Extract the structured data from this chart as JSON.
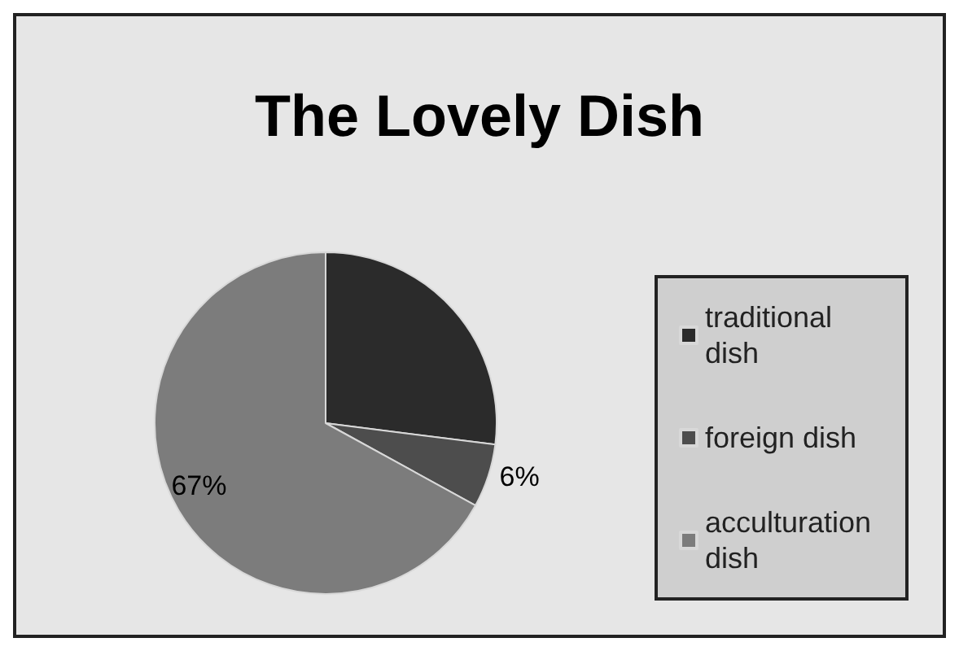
{
  "chart_data": {
    "type": "pie",
    "title": "The Lovely Dish",
    "categories": [
      "traditional dish",
      "foreign dish",
      "acculturation dish"
    ],
    "values": [
      27,
      6,
      67
    ],
    "colors": [
      "#2b2b2b",
      "#4d4d4d",
      "#7c7c7c"
    ],
    "value_labels": [
      null,
      "6%",
      "67%"
    ],
    "legend": "right"
  }
}
